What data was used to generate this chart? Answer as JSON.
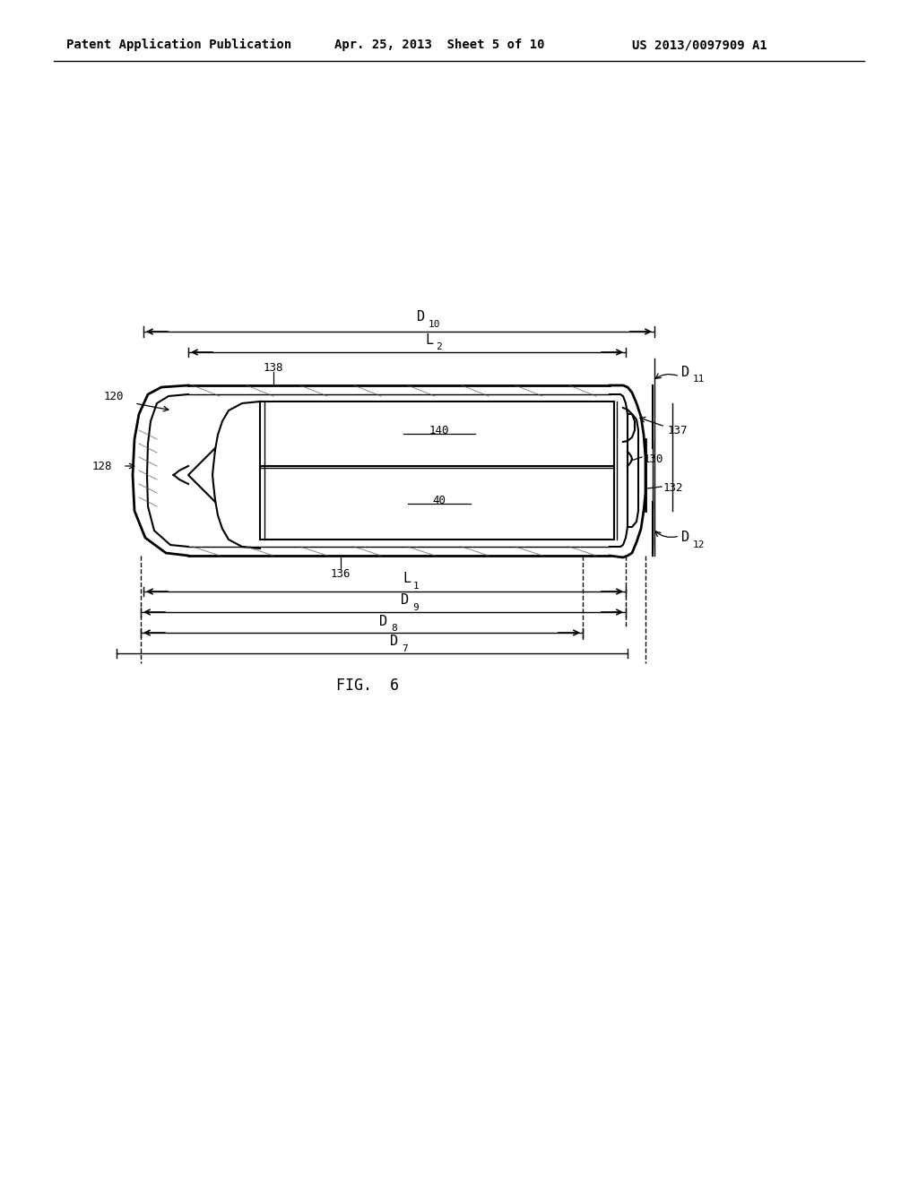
{
  "header_left": "Patent Application Publication",
  "header_mid": "Apr. 25, 2013  Sheet 5 of 10",
  "header_right": "US 2013/0097909 A1",
  "fig_label": "FIG. 6",
  "bg_color": "#ffffff",
  "line_color": "#000000",
  "font_color": "#000000"
}
